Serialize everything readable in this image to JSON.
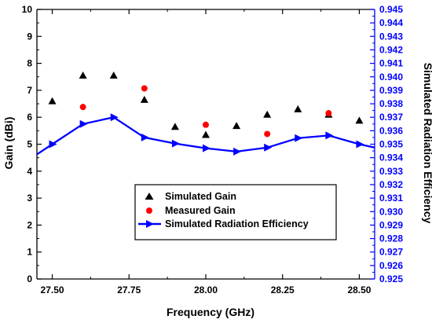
{
  "chart_data": {
    "type": "scatter",
    "xlabel": "Frequency (GHz)",
    "ylabel_left": "Gain (dBi)",
    "ylabel_right": "Simulated Radiation Efficiency",
    "xlim": [
      27.45,
      28.55
    ],
    "ylim_left": [
      0,
      10
    ],
    "ylim_right": [
      0.925,
      0.945
    ],
    "x_ticks": [
      "27.50",
      "27.75",
      "28.00",
      "28.25",
      "28.50"
    ],
    "y_left_ticks": [
      "0",
      "1",
      "2",
      "3",
      "4",
      "5",
      "6",
      "7",
      "8",
      "9",
      "10"
    ],
    "y_right_ticks": [
      "0.925",
      "0.926",
      "0.927",
      "0.928",
      "0.929",
      "0.930",
      "0.931",
      "0.932",
      "0.933",
      "0.934",
      "0.935",
      "0.936",
      "0.937",
      "0.938",
      "0.939",
      "0.940",
      "0.941",
      "0.942",
      "0.943",
      "0.944",
      "0.945"
    ],
    "legend_position": "lower-center",
    "series": [
      {
        "name": "Simulated Gain",
        "marker": "triangle",
        "color": "#000000",
        "axis": "left",
        "x": [
          27.5,
          27.6,
          27.7,
          27.8,
          27.9,
          28.0,
          28.1,
          28.2,
          28.3,
          28.4,
          28.5
        ],
        "y": [
          6.6,
          7.55,
          7.55,
          6.65,
          5.65,
          5.35,
          5.68,
          6.1,
          6.3,
          6.1,
          5.88
        ]
      },
      {
        "name": "Measured Gain",
        "marker": "circle",
        "color": "#ff0000",
        "axis": "left",
        "x": [
          27.6,
          27.8,
          28.0,
          28.2,
          28.4
        ],
        "y": [
          6.38,
          7.07,
          5.72,
          5.38,
          6.15
        ]
      },
      {
        "name": "Simulated Radiation Efficiency",
        "marker": "right-triangle-line",
        "color": "#0000ff",
        "axis": "right",
        "x": [
          27.45,
          27.5,
          27.6,
          27.7,
          27.8,
          27.9,
          28.0,
          28.1,
          28.2,
          28.3,
          28.4,
          28.5,
          28.55
        ],
        "y": [
          0.93425,
          0.935,
          0.9365,
          0.937,
          0.9355,
          0.93505,
          0.9347,
          0.93445,
          0.93475,
          0.93545,
          0.93565,
          0.935,
          0.93475
        ]
      }
    ]
  },
  "colors": {
    "left_axis": "#000000",
    "right_axis": "#0000ff"
  }
}
